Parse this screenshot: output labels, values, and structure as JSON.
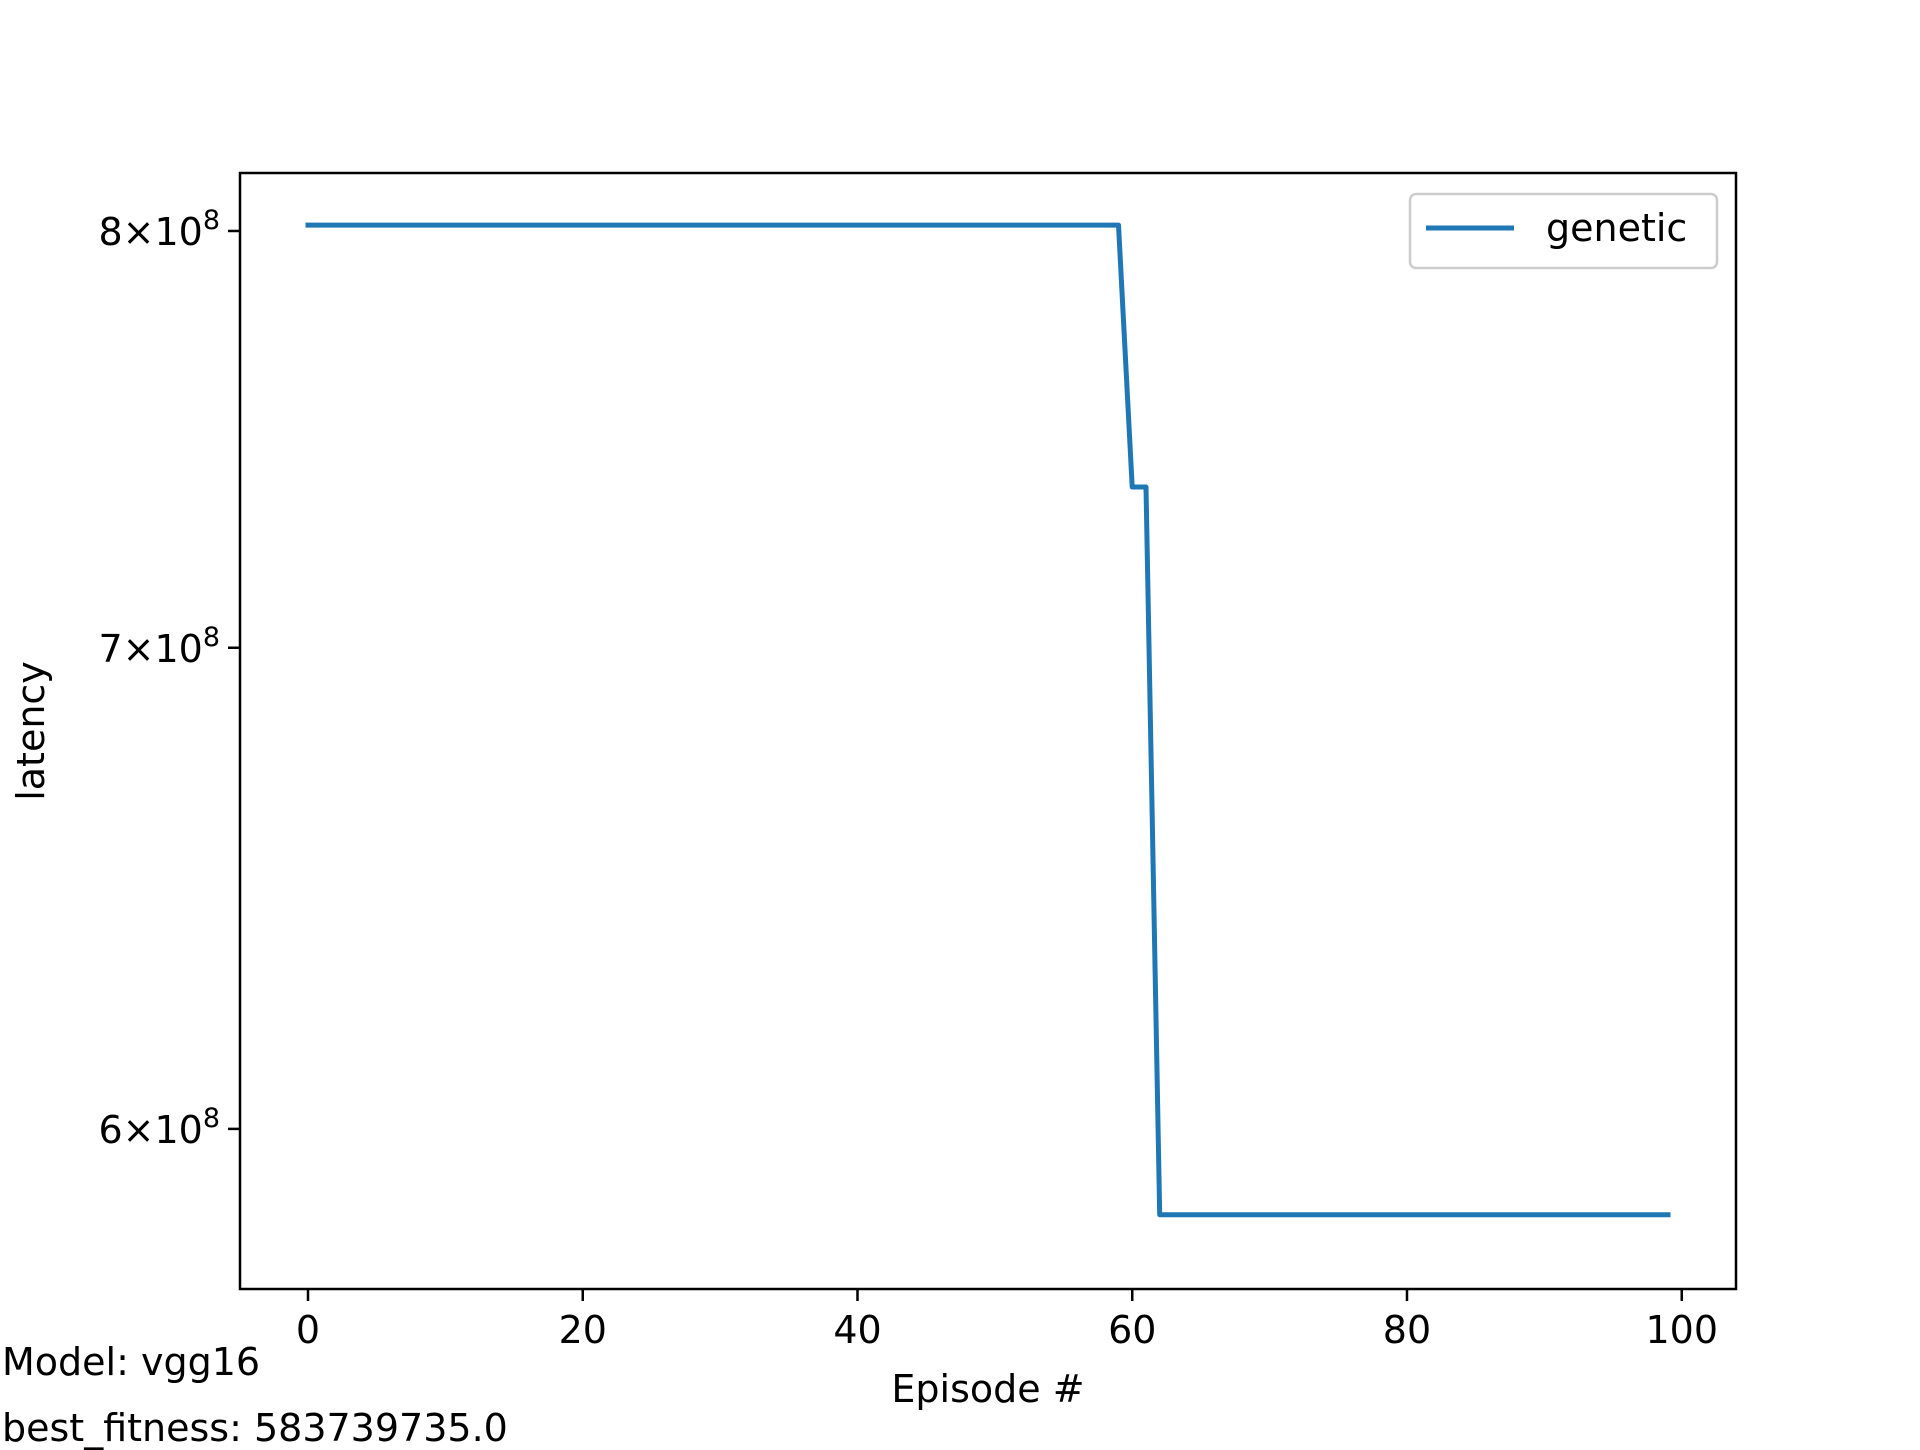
{
  "footnotes": {
    "model": "Model: vgg16",
    "best_fitness": "best_fitness: 583739735.0"
  },
  "chart_data": {
    "type": "line",
    "title": "",
    "xlabel": "Episode #",
    "ylabel": "latency",
    "xlim": [
      -4.95,
      103.95
    ],
    "ylim": [
      570000000,
      815000000
    ],
    "yscale": "log",
    "grid": false,
    "legend_position": "top-right",
    "x_ticks": [
      0,
      20,
      40,
      60,
      80,
      100
    ],
    "x_tick_labels": [
      "0",
      "20",
      "40",
      "60",
      "80",
      "100"
    ],
    "y_ticks": [
      {
        "value": 600000000,
        "mantissa": "6",
        "base": "10",
        "exponent": "8"
      },
      {
        "value": 700000000,
        "mantissa": "7",
        "base": "10",
        "exponent": "8"
      },
      {
        "value": 800000000,
        "mantissa": "8",
        "base": "10",
        "exponent": "8"
      }
    ],
    "series": [
      {
        "name": "genetic",
        "color": "#1f77b4",
        "x": [
          0,
          59,
          60,
          61,
          62,
          99
        ],
        "y": [
          801500000,
          801500000,
          737000000,
          737000000,
          583739735,
          583739735
        ]
      }
    ]
  }
}
